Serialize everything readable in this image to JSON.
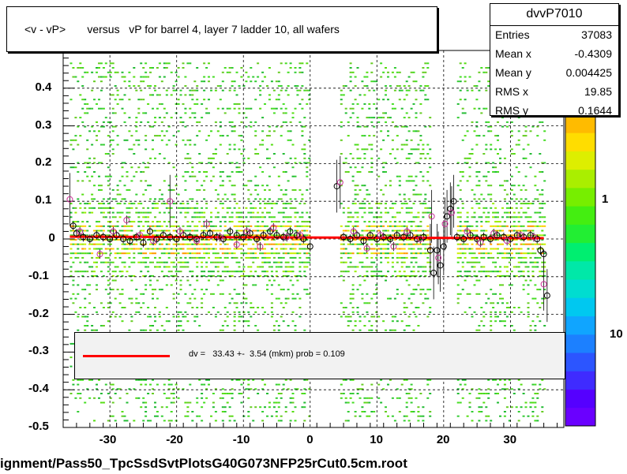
{
  "title": "<v - vP>       versus   vP for barrel 4, layer 7 ladder 10, all wafers",
  "footer": "ignment/Pass50_TpcSsdSvtPlotsG40G073NFP25rCut0.5cm.root",
  "stats": {
    "name": "dvvP7010",
    "rows": [
      {
        "label": "Entries",
        "value": "37083"
      },
      {
        "label": "Mean x",
        "value": "-0.4309"
      },
      {
        "label": "Mean y",
        "value": "0.004425"
      },
      {
        "label": "RMS x",
        "value": "19.85"
      },
      {
        "label": "RMS y",
        "value": "0.1644"
      }
    ]
  },
  "legend": {
    "text": "dv =   33.43 +-  3.54 (mkm) prob = 0.109",
    "color": "#ff0000"
  },
  "colorbar": {
    "labels": [
      "1",
      "10"
    ]
  },
  "chart_data": {
    "type": "scatter",
    "title": "<v - vP>       versus   vP for barrel 4, layer 7 ladder 10, all wafers",
    "xlabel": "",
    "ylabel": "",
    "xlim": [
      -37,
      38
    ],
    "ylim": [
      -0.5,
      0.5
    ],
    "xticks": [
      -30,
      -20,
      -10,
      0,
      10,
      20,
      30
    ],
    "yticks": [
      -0.5,
      -0.4,
      -0.3,
      -0.2,
      -0.1,
      0,
      0.1,
      0.2,
      0.3,
      0.4
    ],
    "ytick_labels": [
      "-0.5",
      "-0.4",
      "-0.3",
      "-0.2",
      "-0.1",
      "0",
      "0.1",
      "0.2",
      "0.3",
      "0.4"
    ],
    "xtick_labels": [
      "-30",
      "-20",
      "-10",
      "0",
      "10",
      "20",
      "30"
    ],
    "grid": true,
    "density_x_ranges": [
      [
        -36,
        0
      ],
      [
        4.5,
        18
      ],
      [
        22,
        35
      ]
    ],
    "fit_line": {
      "x": [
        -36,
        35
      ],
      "y": [
        0.006,
        0.002
      ],
      "color": "#ff0000"
    },
    "series": [
      {
        "marker": "open-circle-black",
        "points": [
          [
            -35.5,
            0.035
          ],
          [
            -35,
            0.015
          ],
          [
            -34,
            0.005
          ],
          [
            -33,
            0.0
          ],
          [
            -32,
            0.01
          ],
          [
            -31,
            0.005
          ],
          [
            -30,
            0.0
          ],
          [
            -29,
            0.01
          ],
          [
            -28,
            0.0
          ],
          [
            -27,
            -0.005
          ],
          [
            -26,
            0.005
          ],
          [
            -25,
            -0.01
          ],
          [
            -24,
            0.02
          ],
          [
            -23,
            0.0
          ],
          [
            -22,
            0.01
          ],
          [
            -21,
            0.005
          ],
          [
            -20,
            0.0
          ],
          [
            -19,
            0.01
          ],
          [
            -18,
            0.005
          ],
          [
            -17,
            0.0
          ],
          [
            -16,
            0.01
          ],
          [
            -15,
            0.015
          ],
          [
            -14,
            0.005
          ],
          [
            -13,
            0.0
          ],
          [
            -12,
            0.02
          ],
          [
            -11,
            0.01
          ],
          [
            -10,
            0.005
          ],
          [
            -9,
            0.015
          ],
          [
            -8,
            0.0
          ],
          [
            -7,
            0.01
          ],
          [
            -6,
            0.02
          ],
          [
            -5,
            0.01
          ],
          [
            -4,
            0.005
          ],
          [
            -3,
            0.02
          ],
          [
            -2,
            0.01
          ],
          [
            -1,
            0.0
          ],
          [
            0,
            -0.02
          ],
          [
            4,
            0.14
          ],
          [
            5,
            0.005
          ],
          [
            6,
            0.0
          ],
          [
            7,
            0.01
          ],
          [
            8,
            -0.005
          ],
          [
            9,
            0.01
          ],
          [
            10,
            0.0
          ],
          [
            11,
            0.005
          ],
          [
            12,
            0.0
          ],
          [
            13,
            0.01
          ],
          [
            14,
            0.005
          ],
          [
            15,
            0.01
          ],
          [
            16,
            0.0
          ],
          [
            17,
            0.005
          ],
          [
            18,
            -0.03
          ],
          [
            18.5,
            -0.09
          ],
          [
            19,
            -0.03
          ],
          [
            19.5,
            -0.07
          ],
          [
            20,
            -0.02
          ],
          [
            20.5,
            0.06
          ],
          [
            21,
            0.08
          ],
          [
            21.5,
            0.1
          ],
          [
            22,
            0.005
          ],
          [
            23,
            0.0
          ],
          [
            24,
            0.01
          ],
          [
            25,
            0.0
          ],
          [
            26,
            0.005
          ],
          [
            27,
            0.0
          ],
          [
            28,
            0.01
          ],
          [
            29,
            0.005
          ],
          [
            30,
            0.0
          ],
          [
            31,
            0.01
          ],
          [
            32,
            0.005
          ],
          [
            33,
            0.01
          ],
          [
            34,
            0.0
          ],
          [
            34.5,
            -0.03
          ],
          [
            35,
            -0.04
          ],
          [
            35.5,
            -0.15
          ]
        ]
      },
      {
        "marker": "open-circle-pink",
        "points": [
          [
            -36,
            0.105
          ],
          [
            -34.5,
            0.02
          ],
          [
            -31.5,
            -0.04
          ],
          [
            -29.5,
            0.02
          ],
          [
            -27.5,
            0.05
          ],
          [
            -25.5,
            0.01
          ],
          [
            -23.5,
            -0.005
          ],
          [
            -21,
            0.1
          ],
          [
            -19.5,
            0.02
          ],
          [
            -17,
            -0.005
          ],
          [
            -15.5,
            0.04
          ],
          [
            -13.5,
            0.005
          ],
          [
            -11,
            -0.015
          ],
          [
            -9.5,
            0.02
          ],
          [
            -7.5,
            -0.02
          ],
          [
            -5.5,
            0.03
          ],
          [
            -3.5,
            0.005
          ],
          [
            -1.5,
            0.01
          ],
          [
            4.5,
            0.15
          ],
          [
            6.5,
            0.02
          ],
          [
            8.5,
            -0.025
          ],
          [
            10.5,
            0.01
          ],
          [
            12.5,
            -0.02
          ],
          [
            14.5,
            0.02
          ],
          [
            16.5,
            0.0
          ],
          [
            18.2,
            0.06
          ],
          [
            19.2,
            -0.05
          ],
          [
            20.2,
            0.04
          ],
          [
            21.2,
            0.07
          ],
          [
            23.5,
            0.02
          ],
          [
            25.5,
            -0.01
          ],
          [
            27.5,
            0.015
          ],
          [
            29.5,
            -0.005
          ],
          [
            31.5,
            0.01
          ],
          [
            33.5,
            0.005
          ],
          [
            35,
            -0.12
          ]
        ]
      }
    ]
  }
}
